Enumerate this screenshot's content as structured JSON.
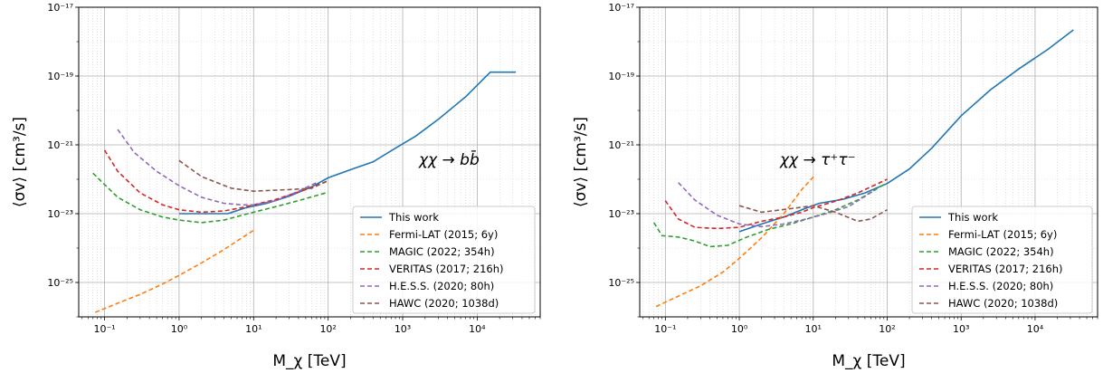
{
  "chart_data": [
    {
      "type": "line",
      "xscale": "log",
      "yscale": "log",
      "xlim": [
        0.045,
        70000
      ],
      "ylim": [
        1e-26,
        1e-17
      ],
      "xlabel": "M_χ [TeV]",
      "ylabel": "⟨σv⟩ [cm³/s]",
      "annotation": "χχ → bb̄",
      "grid": "major solid, minor dotted",
      "legend_position": "lower-right",
      "x_tick_labels": [
        "10⁻¹",
        "10⁰",
        "10¹",
        "10²",
        "10³",
        "10⁴"
      ],
      "y_tick_labels": [
        "10⁻¹⁷",
        "10⁻¹⁹",
        "10⁻²¹",
        "10⁻²³",
        "10⁻²⁵"
      ],
      "series": [
        {
          "name": "This work",
          "color": "#1f77b4",
          "dash": "solid",
          "x": [
            1,
            1.5,
            2.5,
            4.5,
            8,
            15,
            30,
            60,
            100,
            200,
            400,
            800,
            1500,
            3000,
            7000,
            15000,
            33000
          ],
          "y": [
            1e-23,
            1e-23,
            1e-23,
            1e-23,
            1.5e-23,
            2e-23,
            3.2e-23,
            6e-23,
            1.1e-22,
            1.9e-22,
            3.2e-22,
            8e-22,
            1.8e-21,
            5.5e-21,
            2.5e-20,
            1.3e-19,
            1.3e-19
          ]
        },
        {
          "name": "Fermi-LAT (2015; 6y)",
          "color": "#ff7f0e",
          "dash": "dashed",
          "x": [
            0.075,
            0.15,
            0.3,
            0.6,
            1,
            2,
            4,
            7,
            10.5
          ],
          "y": [
            1.35e-26,
            2.5e-26,
            4.5e-26,
            9e-26,
            1.6e-25,
            3.7e-25,
            9e-25,
            2e-24,
            3.5e-24
          ]
        },
        {
          "name": "MAGIC (2022; 354h)",
          "color": "#2ca02c",
          "dash": "dashed",
          "x": [
            0.07,
            0.1,
            0.15,
            0.3,
            0.6,
            1,
            2,
            4,
            7,
            10,
            20,
            40,
            100
          ],
          "y": [
            1.5e-22,
            7e-23,
            3e-23,
            1.3e-23,
            8e-24,
            6.5e-24,
            5.5e-24,
            6.5e-24,
            9e-24,
            1.1e-23,
            1.6e-23,
            2.4e-23,
            4.2e-23
          ]
        },
        {
          "name": "VERITAS (2017; 216h)",
          "color": "#d62728",
          "dash": "dashed",
          "x": [
            0.1,
            0.15,
            0.3,
            0.6,
            1,
            2,
            4,
            7,
            10,
            20,
            50,
            100
          ],
          "y": [
            7e-22,
            1.7e-22,
            4e-23,
            1.8e-23,
            1.3e-23,
            1.1e-23,
            1.2e-23,
            1.5e-23,
            1.8e-23,
            2.6e-23,
            5e-23,
            9e-23
          ]
        },
        {
          "name": "H.E.S.S. (2020; 80h)",
          "color": "#9467bd",
          "dash": "dashed",
          "x": [
            0.15,
            0.25,
            0.5,
            1,
            2,
            4,
            7,
            10,
            20,
            40,
            70
          ],
          "y": [
            2.8e-21,
            6e-22,
            1.7e-22,
            6.5e-23,
            3e-23,
            2e-23,
            1.8e-23,
            1.8e-23,
            2.4e-23,
            4.5e-23,
            8e-23
          ]
        },
        {
          "name": "HAWC (2020; 1038d)",
          "color": "#8c564b",
          "dash": "dashed",
          "x": [
            1,
            2,
            5,
            10,
            30,
            60,
            100
          ],
          "y": [
            3.5e-22,
            1.2e-22,
            5.5e-23,
            4.5e-23,
            5e-23,
            5.5e-23,
            9e-23
          ]
        }
      ]
    },
    {
      "type": "line",
      "xscale": "log",
      "yscale": "log",
      "xlim": [
        0.045,
        70000
      ],
      "ylim": [
        1e-26,
        1e-17
      ],
      "xlabel": "M_χ [TeV]",
      "ylabel": "⟨σv⟩ [cm³/s]",
      "annotation": "χχ → τ⁺τ⁻",
      "grid": "major solid, minor dotted",
      "legend_position": "lower-right",
      "x_tick_labels": [
        "10⁻¹",
        "10⁰",
        "10¹",
        "10²",
        "10³",
        "10⁴"
      ],
      "y_tick_labels": [
        "10⁻¹⁷",
        "10⁻¹⁹",
        "10⁻²¹",
        "10⁻²³",
        "10⁻²⁵"
      ],
      "series": [
        {
          "name": "This work",
          "color": "#1f77b4",
          "dash": "solid",
          "x": [
            1,
            2,
            4,
            7,
            12,
            25,
            50,
            100,
            200,
            400,
            1000,
            2500,
            6000,
            15000,
            33000
          ],
          "y": [
            3e-24,
            5e-24,
            8e-24,
            1.3e-23,
            2e-23,
            2.6e-23,
            4e-23,
            7.5e-23,
            2e-22,
            8e-22,
            7e-21,
            4e-20,
            1.6e-19,
            6e-19,
            2.2e-18
          ]
        },
        {
          "name": "Fermi-LAT (2015; 6y)",
          "color": "#ff7f0e",
          "dash": "dashed",
          "x": [
            0.075,
            0.15,
            0.3,
            0.6,
            1,
            2,
            4,
            7,
            10.5
          ],
          "y": [
            2e-26,
            4e-26,
            8e-26,
            2e-25,
            5e-25,
            2e-24,
            1e-23,
            5e-23,
            1.3e-22
          ]
        },
        {
          "name": "MAGIC (2022; 354h)",
          "color": "#2ca02c",
          "dash": "dashed",
          "x": [
            0.07,
            0.09,
            0.15,
            0.25,
            0.4,
            0.7,
            1.2,
            2.5,
            5,
            10,
            20,
            40,
            90
          ],
          "y": [
            5.5e-24,
            2.3e-24,
            2.1e-24,
            1.6e-24,
            1.1e-24,
            1.2e-24,
            2e-24,
            3.5e-24,
            5e-24,
            8e-24,
            1.3e-23,
            2.5e-23,
            7e-23
          ]
        },
        {
          "name": "VERITAS (2017; 216h)",
          "color": "#d62728",
          "dash": "dashed",
          "x": [
            0.1,
            0.15,
            0.25,
            0.5,
            1,
            2,
            4,
            7,
            10,
            20,
            40,
            100
          ],
          "y": [
            2.4e-23,
            7e-24,
            4e-24,
            3.7e-24,
            4e-24,
            6e-24,
            8e-24,
            1.1e-23,
            1.5e-23,
            2.3e-23,
            4e-23,
            1e-22
          ]
        },
        {
          "name": "H.E.S.S. (2020; 80h)",
          "color": "#9467bd",
          "dash": "dashed",
          "x": [
            0.15,
            0.25,
            0.5,
            1,
            2,
            4,
            8,
            15,
            30,
            70
          ],
          "y": [
            8e-23,
            2.5e-23,
            9e-24,
            5e-24,
            4.2e-24,
            5e-24,
            7e-24,
            1e-23,
            1.6e-23,
            5e-23
          ]
        },
        {
          "name": "HAWC (2020; 1038d)",
          "color": "#8c564b",
          "dash": "dashed",
          "x": [
            1,
            2,
            5,
            10,
            20,
            40,
            60,
            100
          ],
          "y": [
            1.7e-23,
            1.1e-23,
            1.4e-23,
            1.7e-23,
            1.1e-23,
            6e-24,
            7e-24,
            1.3e-23
          ]
        }
      ]
    }
  ]
}
